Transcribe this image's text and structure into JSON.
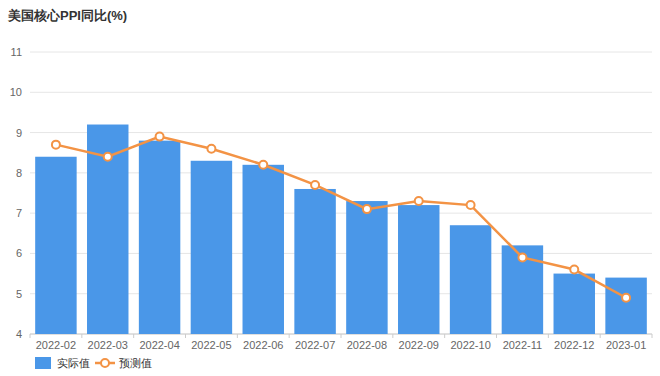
{
  "chart_data": {
    "type": "bar",
    "title": "美国核心PPI同比(%)",
    "categories": [
      "2022-02",
      "2022-03",
      "2022-04",
      "2022-05",
      "2022-06",
      "2022-07",
      "2022-08",
      "2022-09",
      "2022-10",
      "2022-11",
      "2022-12",
      "2023-01"
    ],
    "series": [
      {
        "name": "实际值",
        "type": "bar",
        "color": "#4a97e8",
        "values": [
          8.4,
          9.2,
          8.8,
          8.3,
          8.2,
          7.6,
          7.3,
          7.2,
          6.7,
          6.2,
          5.5,
          5.4
        ]
      },
      {
        "name": "预测值",
        "type": "line",
        "color": "#f39345",
        "marker": "circle",
        "values": [
          8.7,
          8.4,
          8.9,
          8.6,
          8.2,
          7.7,
          7.1,
          7.3,
          7.2,
          5.9,
          5.6,
          4.9
        ]
      }
    ],
    "ylim": [
      4,
      11
    ],
    "yticks": [
      4,
      5,
      6,
      7,
      8,
      9,
      10,
      11
    ],
    "grid": true,
    "legend": "bottom-left"
  }
}
